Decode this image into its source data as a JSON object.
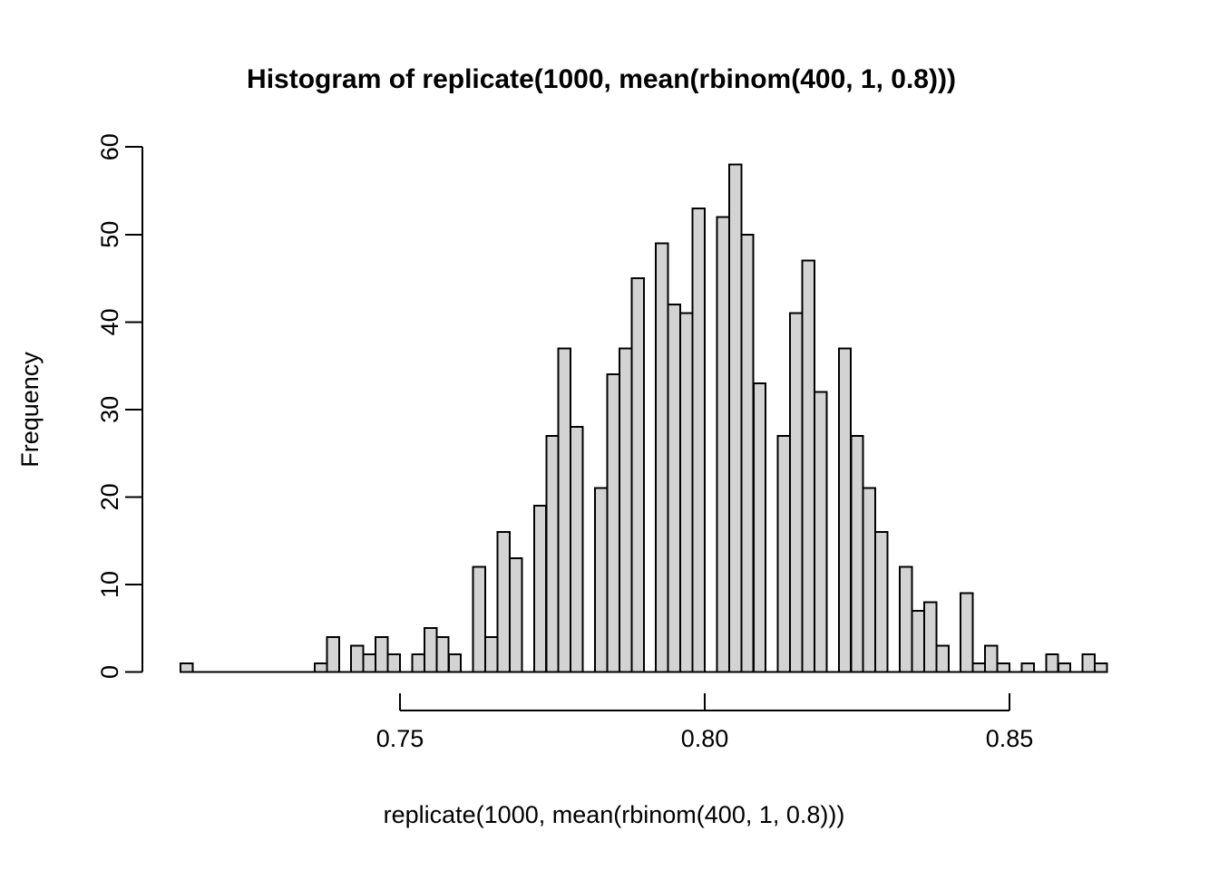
{
  "title": "Histogram of replicate(1000, mean(rbinom(400, 1, 0.8)))",
  "x_axis": {
    "label": "replicate(1000, mean(rbinom(400, 1, 0.8)))",
    "ticks": [
      {
        "value": 0.75,
        "label": "0.75"
      },
      {
        "value": 0.8,
        "label": "0.80"
      },
      {
        "value": 0.85,
        "label": "0.85"
      }
    ]
  },
  "y_axis": {
    "label": "Frequency",
    "ticks": [
      {
        "value": 0,
        "label": "0"
      },
      {
        "value": 10,
        "label": "10"
      },
      {
        "value": 20,
        "label": "20"
      },
      {
        "value": 30,
        "label": "30"
      },
      {
        "value": 40,
        "label": "40"
      },
      {
        "value": 50,
        "label": "50"
      },
      {
        "value": 60,
        "label": "60"
      }
    ]
  },
  "chart_data": {
    "type": "bar",
    "subtype": "histogram",
    "title": "Histogram of replicate(1000, mean(rbinom(400, 1, 0.8)))",
    "xlabel": "replicate(1000, mean(rbinom(400, 1, 0.8)))",
    "ylabel": "Frequency",
    "xlim": [
      0.714,
      0.866
    ],
    "ylim": [
      0,
      60
    ],
    "grid": false,
    "legend": false,
    "bin_start": 0.714,
    "bin_width": 0.002,
    "bin_end": 0.866,
    "counts": [
      1,
      0,
      0,
      0,
      0,
      0,
      0,
      0,
      0,
      0,
      0,
      1,
      4,
      0,
      3,
      2,
      4,
      2,
      0,
      2,
      5,
      4,
      2,
      0,
      12,
      4,
      16,
      13,
      0,
      19,
      27,
      37,
      28,
      0,
      21,
      34,
      37,
      45,
      0,
      49,
      42,
      41,
      53,
      0,
      52,
      58,
      50,
      33,
      0,
      27,
      41,
      47,
      32,
      0,
      37,
      27,
      21,
      16,
      0,
      12,
      7,
      8,
      3,
      0,
      9,
      1,
      3,
      1,
      0,
      1,
      0,
      2,
      1,
      0,
      2,
      1
    ],
    "total_n": 1000,
    "colors": {
      "bar_fill": "#d3d3d3",
      "bar_border": "#000000",
      "axis": "#000000",
      "text": "#000000",
      "background": "#ffffff"
    }
  }
}
